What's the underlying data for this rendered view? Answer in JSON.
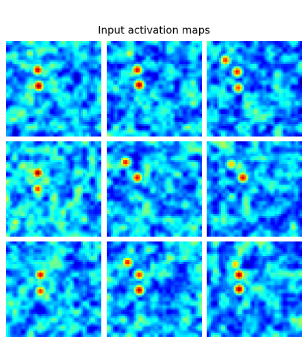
{
  "chart_data": {
    "type": "heatmap",
    "title": "Input activation maps",
    "colormap": "jet",
    "value_range": [
      0,
      1
    ],
    "grid": false,
    "rows": 3,
    "cols": 3,
    "panels": [
      {
        "background": 0.3,
        "blobs": [
          {
            "x": 0.33,
            "y": 0.3,
            "v": 0.95
          },
          {
            "x": 0.34,
            "y": 0.47,
            "v": 1.0
          },
          {
            "x": 0.25,
            "y": 0.13,
            "v": 0.55
          }
        ]
      },
      {
        "background": 0.3,
        "blobs": [
          {
            "x": 0.32,
            "y": 0.3,
            "v": 0.92
          },
          {
            "x": 0.34,
            "y": 0.46,
            "v": 0.98
          },
          {
            "x": 0.24,
            "y": 0.13,
            "v": 0.6
          }
        ]
      },
      {
        "background": 0.28,
        "blobs": [
          {
            "x": 0.2,
            "y": 0.2,
            "v": 0.85
          },
          {
            "x": 0.32,
            "y": 0.32,
            "v": 0.88
          },
          {
            "x": 0.33,
            "y": 0.49,
            "v": 0.82
          }
        ]
      },
      {
        "background": 0.32,
        "blobs": [
          {
            "x": 0.33,
            "y": 0.33,
            "v": 1.0
          },
          {
            "x": 0.33,
            "y": 0.5,
            "v": 0.85
          },
          {
            "x": 0.1,
            "y": 0.85,
            "v": 0.6
          }
        ]
      },
      {
        "background": 0.3,
        "blobs": [
          {
            "x": 0.2,
            "y": 0.22,
            "v": 0.88
          },
          {
            "x": 0.32,
            "y": 0.38,
            "v": 0.9
          }
        ]
      },
      {
        "background": 0.3,
        "blobs": [
          {
            "x": 0.26,
            "y": 0.24,
            "v": 0.7
          },
          {
            "x": 0.38,
            "y": 0.38,
            "v": 0.92
          }
        ]
      },
      {
        "background": 0.3,
        "blobs": [
          {
            "x": 0.36,
            "y": 0.35,
            "v": 0.92
          },
          {
            "x": 0.36,
            "y": 0.52,
            "v": 0.85
          }
        ]
      },
      {
        "background": 0.3,
        "blobs": [
          {
            "x": 0.22,
            "y": 0.22,
            "v": 0.88
          },
          {
            "x": 0.34,
            "y": 0.35,
            "v": 0.86
          },
          {
            "x": 0.34,
            "y": 0.51,
            "v": 0.95
          }
        ]
      },
      {
        "background": 0.3,
        "blobs": [
          {
            "x": 0.3,
            "y": 0.24,
            "v": 0.7
          },
          {
            "x": 0.34,
            "y": 0.35,
            "v": 0.98
          },
          {
            "x": 0.34,
            "y": 0.5,
            "v": 0.98
          }
        ]
      }
    ]
  }
}
